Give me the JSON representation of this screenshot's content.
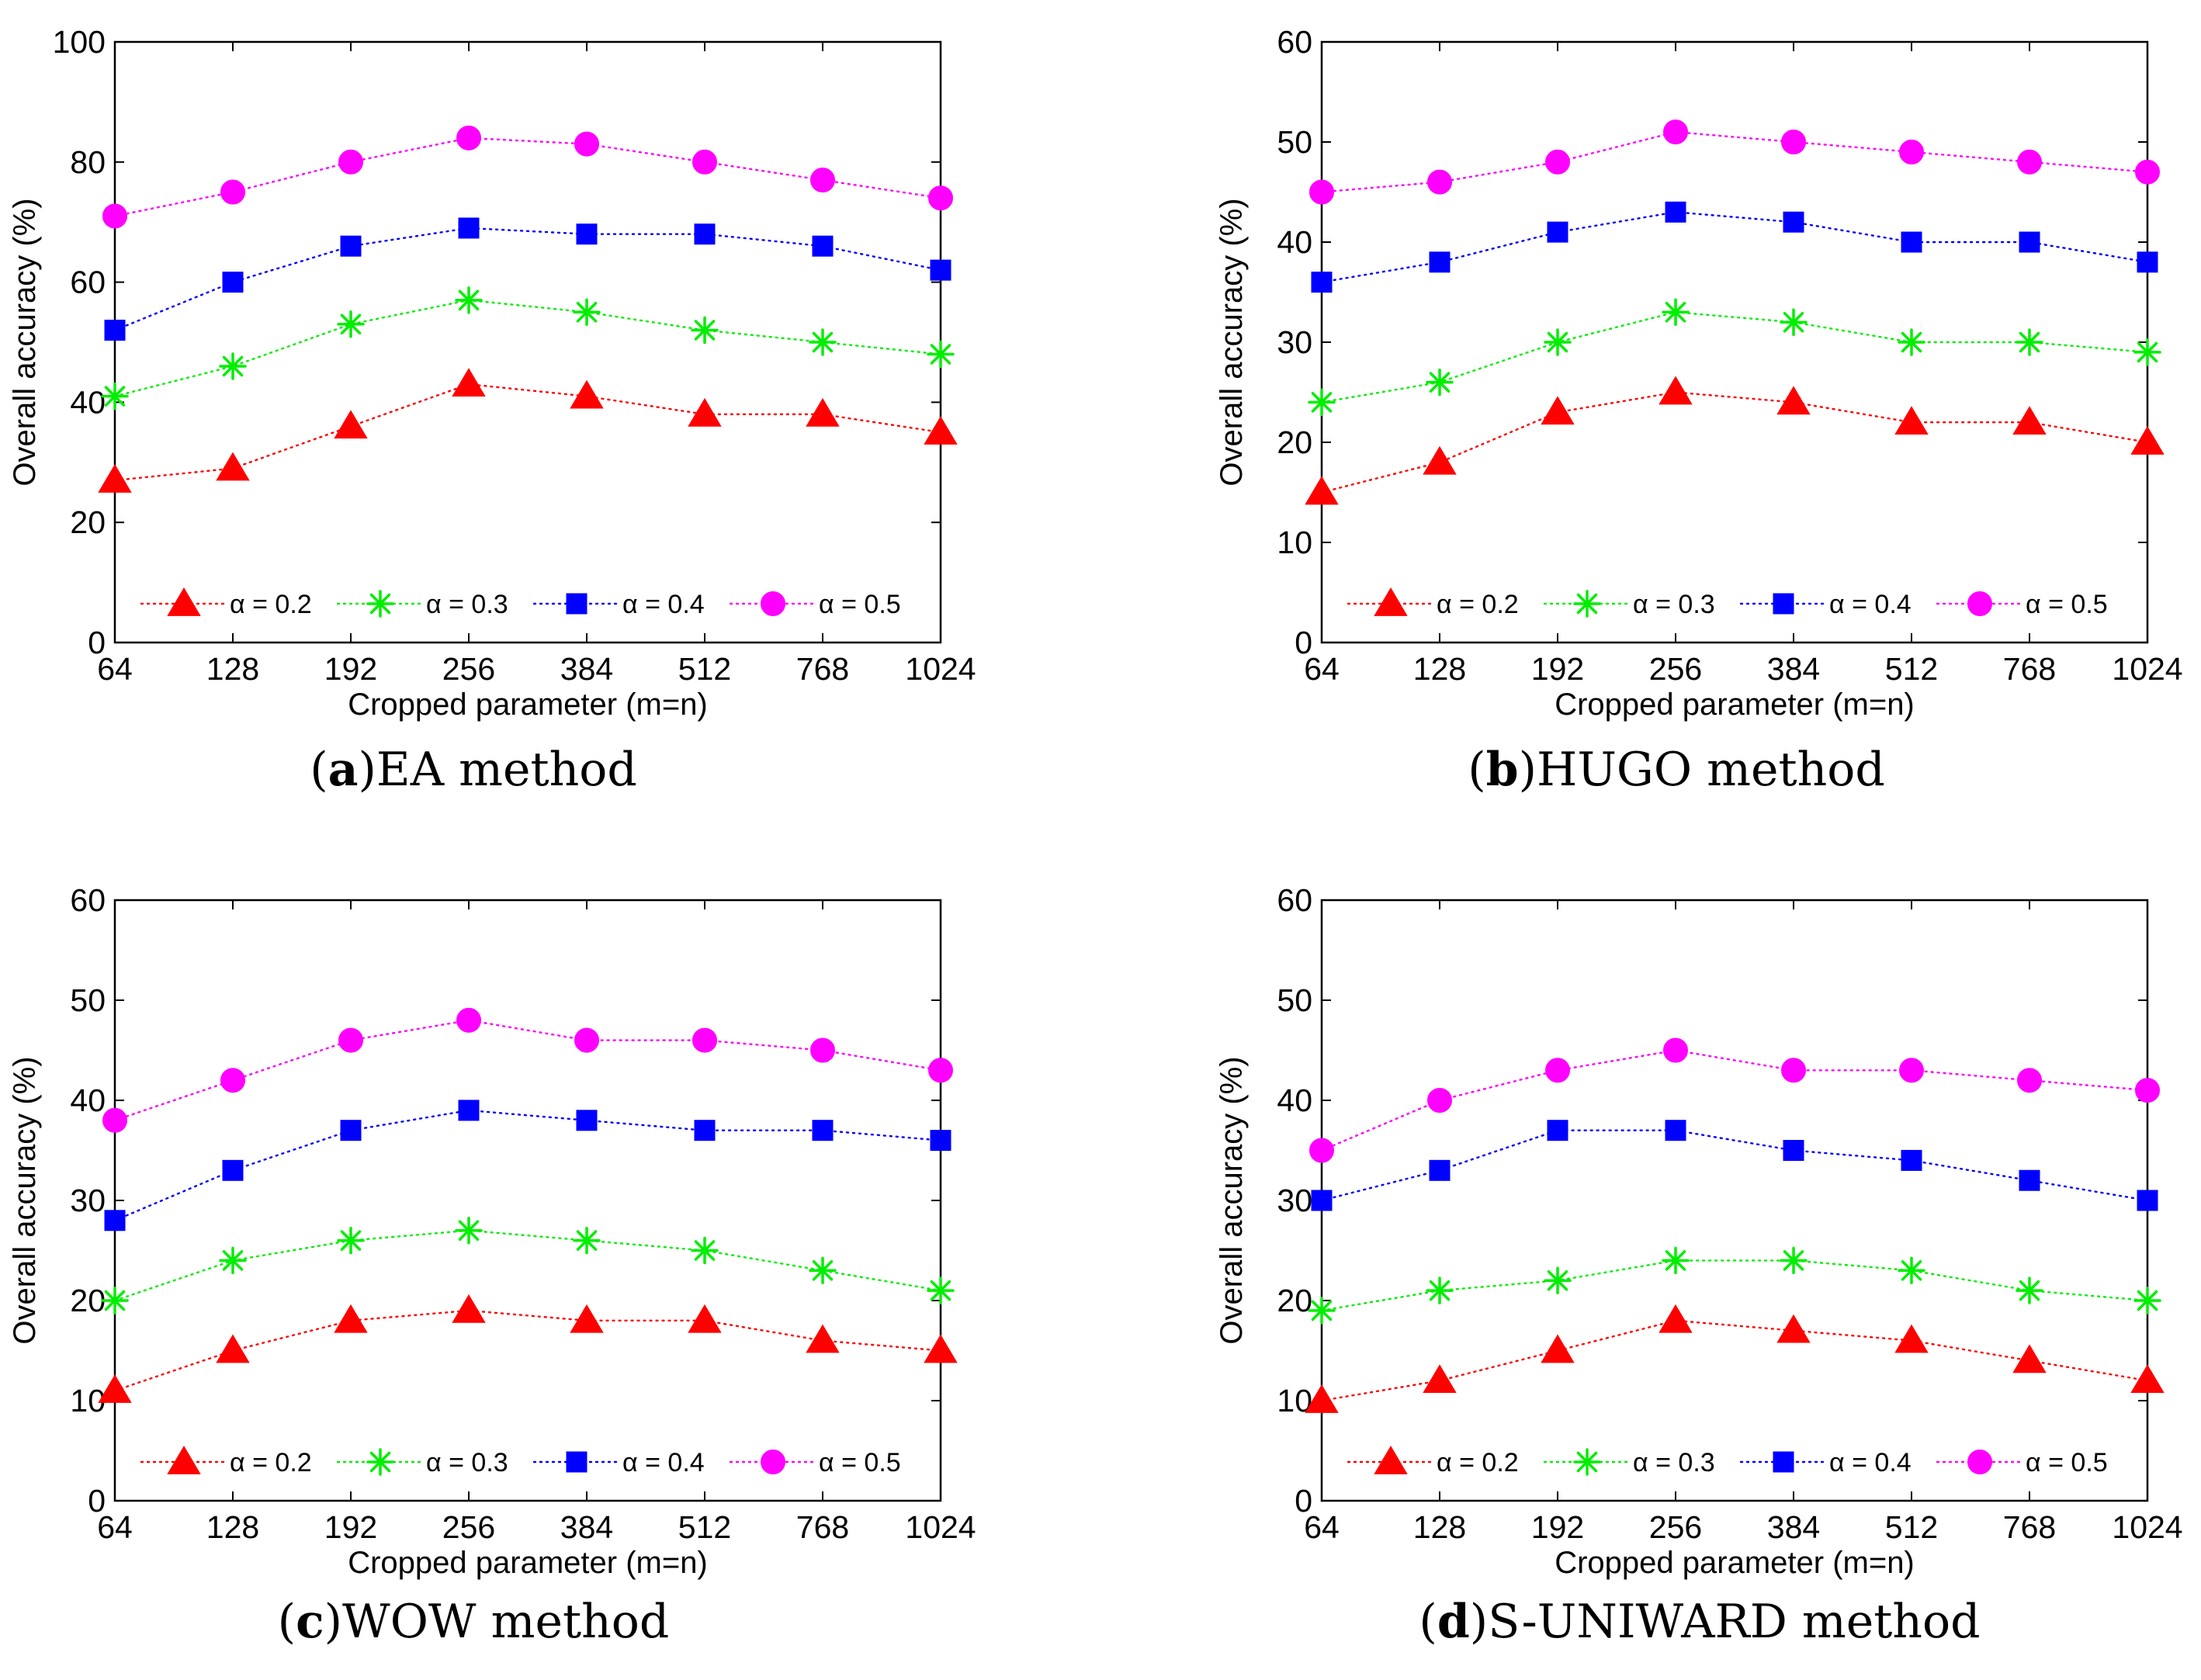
{
  "figure": {
    "panels": [
      "(a) EA method",
      "(b) HUGO method",
      "(c) WOW method",
      "(d) S-UNIWARD method"
    ]
  },
  "chart_data": [
    {
      "type": "line",
      "caption_letter": "a",
      "caption_text": "EA method",
      "xlabel": "Cropped parameter (m=n)",
      "ylabel": "Overall accuracy (%)",
      "categories": [
        "64",
        "128",
        "192",
        "256",
        "384",
        "512",
        "768",
        "1024"
      ],
      "ylim": [
        0,
        100
      ],
      "yticks": [
        "0",
        "20",
        "40",
        "60",
        "80",
        "100"
      ],
      "legend_position": "bottom",
      "series": [
        {
          "name": "α = 0.2",
          "marker": "triangle",
          "color": "#ff0000",
          "values": [
            27,
            29,
            36,
            43,
            41,
            38,
            38,
            35
          ]
        },
        {
          "name": "α = 0.3",
          "marker": "asterisk",
          "color": "#00ee00",
          "values": [
            41,
            46,
            53,
            57,
            55,
            52,
            50,
            48
          ]
        },
        {
          "name": "α = 0.4",
          "marker": "square",
          "color": "#0000ff",
          "values": [
            52,
            60,
            66,
            69,
            68,
            68,
            66,
            62
          ]
        },
        {
          "name": "α = 0.5",
          "marker": "circle",
          "color": "#ff00ff",
          "values": [
            71,
            75,
            80,
            84,
            83,
            80,
            77,
            74
          ]
        }
      ]
    },
    {
      "type": "line",
      "caption_letter": "b",
      "caption_text": "HUGO method",
      "xlabel": "Cropped parameter (m=n)",
      "ylabel": "Overall accuracy (%)",
      "categories": [
        "64",
        "128",
        "192",
        "256",
        "384",
        "512",
        "768",
        "1024"
      ],
      "ylim": [
        0,
        60
      ],
      "yticks": [
        "0",
        "10",
        "20",
        "30",
        "40",
        "50",
        "60"
      ],
      "legend_position": "bottom",
      "series": [
        {
          "name": "α = 0.2",
          "marker": "triangle",
          "color": "#ff0000",
          "values": [
            15,
            18,
            23,
            25,
            24,
            22,
            22,
            20
          ]
        },
        {
          "name": "α = 0.3",
          "marker": "asterisk",
          "color": "#00ee00",
          "values": [
            24,
            26,
            30,
            33,
            32,
            30,
            30,
            29
          ]
        },
        {
          "name": "α = 0.4",
          "marker": "square",
          "color": "#0000ff",
          "values": [
            36,
            38,
            41,
            43,
            42,
            40,
            40,
            38
          ]
        },
        {
          "name": "α = 0.5",
          "marker": "circle",
          "color": "#ff00ff",
          "values": [
            45,
            46,
            48,
            51,
            50,
            49,
            48,
            47
          ]
        }
      ]
    },
    {
      "type": "line",
      "caption_letter": "c",
      "caption_text": "WOW method",
      "xlabel": "Cropped parameter (m=n)",
      "ylabel": "Overall accuracy (%)",
      "categories": [
        "64",
        "128",
        "192",
        "256",
        "384",
        "512",
        "768",
        "1024"
      ],
      "ylim": [
        0,
        60
      ],
      "yticks": [
        "0",
        "10",
        "20",
        "30",
        "40",
        "50",
        "60"
      ],
      "legend_position": "bottom",
      "series": [
        {
          "name": "α = 0.2",
          "marker": "triangle",
          "color": "#ff0000",
          "values": [
            11,
            15,
            18,
            19,
            18,
            18,
            16,
            15
          ]
        },
        {
          "name": "α = 0.3",
          "marker": "asterisk",
          "color": "#00ee00",
          "values": [
            20,
            24,
            26,
            27,
            26,
            25,
            23,
            21
          ]
        },
        {
          "name": "α = 0.4",
          "marker": "square",
          "color": "#0000ff",
          "values": [
            28,
            33,
            37,
            39,
            38,
            37,
            37,
            36
          ]
        },
        {
          "name": "α = 0.5",
          "marker": "circle",
          "color": "#ff00ff",
          "values": [
            38,
            42,
            46,
            48,
            46,
            46,
            45,
            43
          ]
        }
      ]
    },
    {
      "type": "line",
      "caption_letter": "d",
      "caption_text": "S-UNIWARD method",
      "xlabel": "Cropped parameter (m=n)",
      "ylabel": "Overall accuracy (%)",
      "categories": [
        "64",
        "128",
        "192",
        "256",
        "384",
        "512",
        "768",
        "1024"
      ],
      "ylim": [
        0,
        60
      ],
      "yticks": [
        "0",
        "10",
        "20",
        "30",
        "40",
        "50",
        "60"
      ],
      "legend_position": "bottom",
      "series": [
        {
          "name": "α = 0.2",
          "marker": "triangle",
          "color": "#ff0000",
          "values": [
            10,
            12,
            15,
            18,
            17,
            16,
            14,
            12
          ]
        },
        {
          "name": "α = 0.3",
          "marker": "asterisk",
          "color": "#00ee00",
          "values": [
            19,
            21,
            22,
            24,
            24,
            23,
            21,
            20
          ]
        },
        {
          "name": "α = 0.4",
          "marker": "square",
          "color": "#0000ff",
          "values": [
            30,
            33,
            37,
            37,
            35,
            34,
            32,
            30
          ]
        },
        {
          "name": "α = 0.5",
          "marker": "circle",
          "color": "#ff00ff",
          "values": [
            35,
            40,
            43,
            45,
            43,
            43,
            42,
            41
          ]
        }
      ]
    }
  ]
}
